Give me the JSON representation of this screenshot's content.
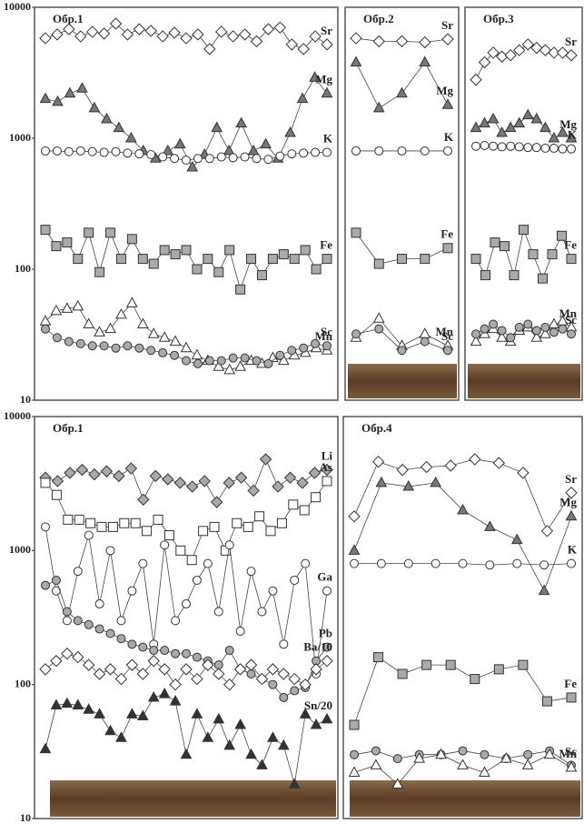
{
  "chart_data": [
    {
      "type": "line",
      "title": "Обр.1",
      "log_scale": true,
      "ylim": [
        10,
        10000
      ],
      "yticks": [
        10,
        100,
        1000,
        10000
      ],
      "series": [
        {
          "name": "Sr",
          "marker": "diamond",
          "color": "#ffffff",
          "values": [
            5800,
            6200,
            6800,
            6000,
            6500,
            6300,
            7500,
            6200,
            6800,
            6600,
            6000,
            6400,
            5800,
            6200,
            4800,
            6500,
            6000,
            6200,
            5500,
            6800,
            7000,
            5200,
            4800,
            6000,
            5200
          ]
        },
        {
          "name": "Mg",
          "marker": "triangle",
          "color": "#777777",
          "values": [
            2000,
            1900,
            2200,
            2400,
            1700,
            1400,
            1200,
            1000,
            800,
            700,
            800,
            900,
            600,
            750,
            1200,
            800,
            1300,
            800,
            900,
            700,
            1100,
            2000,
            2900,
            2200
          ]
        },
        {
          "name": "K",
          "marker": "circle",
          "color": "#ffffff",
          "values": [
            800,
            800,
            790,
            800,
            790,
            780,
            790,
            770,
            760,
            750,
            720,
            700,
            680,
            700,
            700,
            720,
            710,
            720,
            700,
            690,
            730,
            760,
            770,
            780,
            780
          ]
        },
        {
          "name": "Fe",
          "marker": "square",
          "color": "#aaaaaa",
          "values": [
            200,
            150,
            160,
            120,
            190,
            95,
            190,
            120,
            170,
            120,
            110,
            140,
            130,
            140,
            100,
            120,
            95,
            140,
            70,
            120,
            90,
            120,
            130,
            120,
            140,
            100,
            120
          ]
        },
        {
          "name": "Mn",
          "marker": "triangle",
          "color": "#ffffff",
          "values": [
            40,
            48,
            50,
            52,
            38,
            33,
            35,
            45,
            55,
            38,
            32,
            30,
            28,
            25,
            22,
            20,
            18,
            17,
            18,
            20,
            19,
            21,
            20,
            22,
            23,
            25,
            24
          ]
        },
        {
          "name": "Sc",
          "marker": "circle",
          "color": "#aaaaaa",
          "values": [
            35,
            30,
            28,
            27,
            26,
            26,
            25,
            26,
            25,
            24,
            23,
            22,
            20,
            19,
            20,
            20,
            21,
            21,
            20,
            19,
            22,
            24,
            25,
            27,
            26
          ]
        }
      ]
    },
    {
      "type": "line",
      "title": "Обр.2",
      "log_scale": true,
      "ylim": [
        10,
        10000
      ],
      "series": [
        {
          "name": "Sr",
          "marker": "diamond",
          "color": "#ffffff",
          "values": [
            5800,
            5500,
            5500,
            5400,
            5700
          ]
        },
        {
          "name": "Mg",
          "marker": "triangle",
          "color": "#777777",
          "values": [
            3800,
            1700,
            2200,
            3800,
            1800
          ]
        },
        {
          "name": "K",
          "marker": "circle",
          "color": "#ffffff",
          "values": [
            800,
            800,
            800,
            800,
            800
          ]
        },
        {
          "name": "Fe",
          "marker": "square",
          "color": "#aaaaaa",
          "values": [
            190,
            110,
            120,
            120,
            145
          ]
        },
        {
          "name": "Mn",
          "marker": "triangle",
          "color": "#ffffff",
          "values": [
            30,
            42,
            26,
            32,
            26
          ]
        },
        {
          "name": "Sc",
          "marker": "circle",
          "color": "#aaaaaa",
          "values": [
            32,
            35,
            24,
            28,
            24
          ]
        }
      ]
    },
    {
      "type": "line",
      "title": "Обр.3",
      "log_scale": true,
      "ylim": [
        10,
        10000
      ],
      "series": [
        {
          "name": "Sr",
          "marker": "diamond",
          "color": "#ffffff",
          "values": [
            2800,
            3800,
            4500,
            4200,
            4300,
            4700,
            5200,
            4900,
            4700,
            4500,
            4500,
            4300
          ]
        },
        {
          "name": "Mg",
          "marker": "triangle",
          "color": "#777777",
          "values": [
            1200,
            1300,
            1400,
            1100,
            1200,
            1300,
            1500,
            1400,
            1200,
            1000,
            1100,
            1000
          ]
        },
        {
          "name": "K",
          "marker": "circle",
          "color": "#ffffff",
          "values": [
            870,
            880,
            870,
            860,
            870,
            860,
            850,
            850,
            840,
            840,
            830,
            830
          ]
        },
        {
          "name": "Fe",
          "marker": "square",
          "color": "#aaaaaa",
          "values": [
            120,
            90,
            160,
            150,
            90,
            200,
            130,
            85,
            130,
            180,
            120
          ]
        },
        {
          "name": "Mn",
          "marker": "triangle",
          "color": "#ffffff",
          "values": [
            28,
            32,
            35,
            30,
            28,
            34,
            36,
            30,
            32,
            38,
            40,
            36
          ]
        },
        {
          "name": "Sc",
          "marker": "circle",
          "color": "#aaaaaa",
          "values": [
            32,
            35,
            38,
            34,
            30,
            36,
            38,
            34,
            36,
            33,
            35,
            32
          ]
        }
      ]
    },
    {
      "type": "line",
      "title": "Обр.1",
      "log_scale": true,
      "ylim": [
        10,
        10000
      ],
      "yticks": [
        10,
        100,
        1000,
        10000
      ],
      "series": [
        {
          "name": "Li",
          "marker": "diamond",
          "color": "#aaaaaa",
          "values": [
            3500,
            3300,
            3800,
            4000,
            3700,
            3900,
            3600,
            4100,
            2400,
            3600,
            3400,
            3200,
            3000,
            3300,
            2300,
            3200,
            3500,
            2800,
            4800,
            3000,
            3500,
            3200,
            3800,
            4000
          ]
        },
        {
          "name": "As",
          "marker": "square",
          "color": "#ffffff",
          "values": [
            3200,
            2600,
            1700,
            1700,
            1600,
            1500,
            1500,
            1600,
            1600,
            1400,
            1700,
            1300,
            1000,
            850,
            1400,
            1500,
            1000,
            1600,
            1500,
            1800,
            1400,
            1600,
            2200,
            2000,
            2500,
            3300
          ]
        },
        {
          "name": "Ga",
          "marker": "circle",
          "color": "#ffffff",
          "values": [
            1500,
            500,
            300,
            700,
            1300,
            400,
            1000,
            300,
            500,
            800,
            200,
            1100,
            300,
            400,
            600,
            800,
            350,
            1100,
            250,
            700,
            350,
            500,
            200,
            600,
            800,
            120,
            500
          ]
        },
        {
          "name": "Pb",
          "marker": "circle",
          "color": "#aaaaaa",
          "values": [
            550,
            600,
            350,
            300,
            280,
            260,
            240,
            220,
            200,
            190,
            180,
            180,
            170,
            170,
            160,
            150,
            140,
            180,
            130,
            120,
            110,
            100,
            80,
            90,
            95,
            150,
            190
          ]
        },
        {
          "name": "Ba/10",
          "marker": "diamond",
          "color": "#ffffff",
          "values": [
            130,
            150,
            170,
            160,
            140,
            120,
            130,
            110,
            140,
            120,
            150,
            130,
            100,
            130,
            110,
            140,
            120,
            100,
            130,
            140,
            110,
            130,
            120,
            110,
            100,
            130,
            150
          ]
        },
        {
          "name": "Sn/20",
          "marker": "triangle",
          "color": "#333333",
          "values": [
            33,
            70,
            72,
            70,
            65,
            60,
            45,
            40,
            60,
            58,
            80,
            85,
            75,
            30,
            60,
            40,
            55,
            35,
            50,
            30,
            25,
            40,
            35,
            18,
            60,
            50,
            55
          ]
        }
      ]
    },
    {
      "type": "line",
      "title": "Обр.4",
      "log_scale": true,
      "ylim": [
        10,
        10000
      ],
      "series": [
        {
          "name": "Sr",
          "marker": "diamond",
          "color": "#ffffff",
          "values": [
            1800,
            4600,
            4000,
            4200,
            4300,
            4800,
            4500,
            3800,
            1400,
            2700
          ]
        },
        {
          "name": "Mg",
          "marker": "triangle",
          "color": "#777777",
          "values": [
            1000,
            3200,
            3000,
            3200,
            2000,
            1500,
            1200,
            500,
            1800
          ]
        },
        {
          "name": "K",
          "marker": "circle",
          "color": "#ffffff",
          "values": [
            800,
            800,
            800,
            800,
            800,
            780,
            800,
            780,
            800
          ]
        },
        {
          "name": "Fe",
          "marker": "square",
          "color": "#aaaaaa",
          "values": [
            50,
            160,
            120,
            140,
            140,
            110,
            130,
            140,
            75,
            80
          ]
        },
        {
          "name": "Sc",
          "marker": "circle",
          "color": "#aaaaaa",
          "values": [
            30,
            32,
            28,
            30,
            30,
            32,
            30,
            28,
            30,
            32,
            25
          ]
        },
        {
          "name": "Mn",
          "marker": "triangle",
          "color": "#ffffff",
          "values": [
            22,
            25,
            18,
            28,
            30,
            25,
            22,
            28,
            25,
            30,
            24
          ]
        }
      ]
    }
  ]
}
